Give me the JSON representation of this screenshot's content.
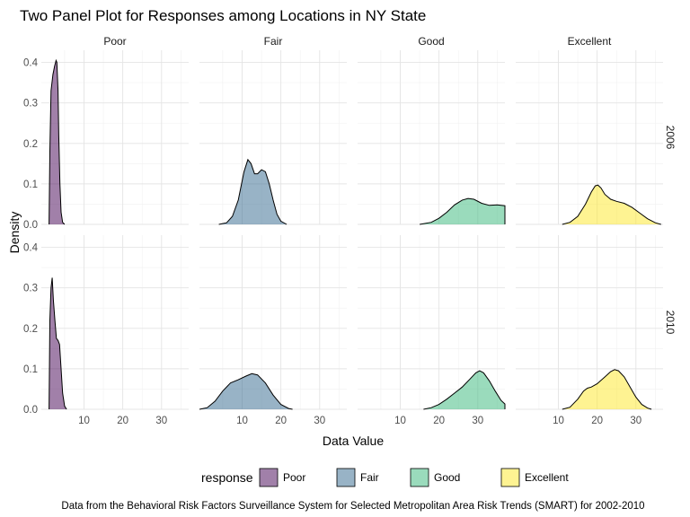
{
  "chart_data": {
    "type": "area",
    "title": "Two Panel Plot for Responses among Locations in NY State",
    "xlabel": "Data Value",
    "ylabel": "Density",
    "caption": "Data from the Behavioral Risk Factors Surveillance System for Selected Metropolitan Area Risk Trends (SMART) for 2002-2010",
    "legend_title": "response",
    "legend_position": "bottom",
    "grid": true,
    "facet_cols": [
      "Poor",
      "Fair",
      "Good",
      "Excellent"
    ],
    "facet_rows": [
      "2006",
      "2010"
    ],
    "xlim": [
      -1,
      37
    ],
    "ylim": [
      0,
      0.43
    ],
    "x_ticks": [
      10,
      20,
      30
    ],
    "y_ticks": [
      0.0,
      0.1,
      0.2,
      0.3,
      0.4
    ],
    "x_tick_labels": [
      "10",
      "20",
      "30"
    ],
    "y_tick_labels": [
      "0.0",
      "0.1",
      "0.2",
      "0.3",
      "0.4"
    ],
    "series": [
      {
        "name": "Poor",
        "color": "#440154",
        "fill_opacity": 0.5
      },
      {
        "name": "Fair",
        "color": "#31688E",
        "fill_opacity": 0.5
      },
      {
        "name": "Good",
        "color": "#35B779",
        "fill_opacity": 0.5
      },
      {
        "name": "Excellent",
        "color": "#FDE725",
        "fill_opacity": 0.5
      }
    ],
    "panels": [
      {
        "row": "2006",
        "col": "Poor",
        "points": [
          [
            1.0,
            0.0
          ],
          [
            1.2,
            0.18
          ],
          [
            1.5,
            0.33
          ],
          [
            2.0,
            0.37
          ],
          [
            2.4,
            0.39
          ],
          [
            2.8,
            0.405
          ],
          [
            3.0,
            0.4
          ],
          [
            3.3,
            0.33
          ],
          [
            3.5,
            0.22
          ],
          [
            3.8,
            0.1
          ],
          [
            4.1,
            0.03
          ],
          [
            4.5,
            0.005
          ],
          [
            5.0,
            0.0
          ]
        ]
      },
      {
        "row": "2006",
        "col": "Fair",
        "points": [
          [
            4.0,
            0.0
          ],
          [
            6.0,
            0.004
          ],
          [
            7.5,
            0.02
          ],
          [
            9.0,
            0.06
          ],
          [
            10.5,
            0.13
          ],
          [
            11.5,
            0.16
          ],
          [
            12.3,
            0.15
          ],
          [
            13.2,
            0.125
          ],
          [
            14.0,
            0.125
          ],
          [
            15.0,
            0.135
          ],
          [
            16.0,
            0.13
          ],
          [
            17.0,
            0.1
          ],
          [
            18.0,
            0.06
          ],
          [
            19.0,
            0.025
          ],
          [
            20.0,
            0.008
          ],
          [
            21.5,
            0.0
          ]
        ]
      },
      {
        "row": "2006",
        "col": "Good",
        "points": [
          [
            15.0,
            0.0
          ],
          [
            18.0,
            0.005
          ],
          [
            20.0,
            0.015
          ],
          [
            22.0,
            0.03
          ],
          [
            24.0,
            0.048
          ],
          [
            26.0,
            0.06
          ],
          [
            27.5,
            0.064
          ],
          [
            29.0,
            0.062
          ],
          [
            31.0,
            0.052
          ],
          [
            33.0,
            0.047
          ],
          [
            35.0,
            0.048
          ],
          [
            37.0,
            0.046
          ],
          [
            37.0,
            0.0
          ]
        ]
      },
      {
        "row": "2006",
        "col": "Excellent",
        "points": [
          [
            11.0,
            0.0
          ],
          [
            13.0,
            0.005
          ],
          [
            15.0,
            0.02
          ],
          [
            17.0,
            0.05
          ],
          [
            18.5,
            0.08
          ],
          [
            19.5,
            0.095
          ],
          [
            20.2,
            0.097
          ],
          [
            21.0,
            0.09
          ],
          [
            22.0,
            0.074
          ],
          [
            23.5,
            0.062
          ],
          [
            25.0,
            0.057
          ],
          [
            27.0,
            0.052
          ],
          [
            29.0,
            0.042
          ],
          [
            31.0,
            0.028
          ],
          [
            33.0,
            0.014
          ],
          [
            35.0,
            0.004
          ],
          [
            36.5,
            0.0
          ]
        ]
      },
      {
        "row": "2010",
        "col": "Poor",
        "points": [
          [
            1.0,
            0.0
          ],
          [
            1.2,
            0.22
          ],
          [
            1.5,
            0.3
          ],
          [
            1.8,
            0.325
          ],
          [
            2.1,
            0.27
          ],
          [
            2.5,
            0.22
          ],
          [
            2.9,
            0.175
          ],
          [
            3.3,
            0.17
          ],
          [
            3.7,
            0.16
          ],
          [
            4.1,
            0.1
          ],
          [
            4.5,
            0.04
          ],
          [
            5.0,
            0.008
          ],
          [
            5.5,
            0.0
          ]
        ]
      },
      {
        "row": "2010",
        "col": "Fair",
        "points": [
          [
            -1.0,
            0.0
          ],
          [
            1.0,
            0.004
          ],
          [
            3.0,
            0.02
          ],
          [
            5.0,
            0.045
          ],
          [
            7.0,
            0.065
          ],
          [
            9.0,
            0.073
          ],
          [
            11.0,
            0.082
          ],
          [
            12.5,
            0.088
          ],
          [
            14.0,
            0.085
          ],
          [
            16.0,
            0.065
          ],
          [
            18.0,
            0.035
          ],
          [
            20.0,
            0.012
          ],
          [
            22.0,
            0.002
          ],
          [
            23.0,
            0.0
          ]
        ]
      },
      {
        "row": "2010",
        "col": "Good",
        "points": [
          [
            16.0,
            0.0
          ],
          [
            18.0,
            0.004
          ],
          [
            20.0,
            0.012
          ],
          [
            22.0,
            0.025
          ],
          [
            24.0,
            0.04
          ],
          [
            26.0,
            0.055
          ],
          [
            28.0,
            0.075
          ],
          [
            29.5,
            0.09
          ],
          [
            30.5,
            0.095
          ],
          [
            31.5,
            0.09
          ],
          [
            33.0,
            0.07
          ],
          [
            34.5,
            0.045
          ],
          [
            36.0,
            0.022
          ],
          [
            37.0,
            0.013
          ],
          [
            37.0,
            0.0
          ]
        ]
      },
      {
        "row": "2010",
        "col": "Excellent",
        "points": [
          [
            11.0,
            0.0
          ],
          [
            13.0,
            0.005
          ],
          [
            15.0,
            0.025
          ],
          [
            16.5,
            0.045
          ],
          [
            17.5,
            0.052
          ],
          [
            18.5,
            0.055
          ],
          [
            20.0,
            0.063
          ],
          [
            22.0,
            0.08
          ],
          [
            23.5,
            0.093
          ],
          [
            24.5,
            0.098
          ],
          [
            25.5,
            0.095
          ],
          [
            27.0,
            0.08
          ],
          [
            28.5,
            0.055
          ],
          [
            30.0,
            0.03
          ],
          [
            31.5,
            0.012
          ],
          [
            33.0,
            0.003
          ],
          [
            34.0,
            0.0
          ]
        ]
      }
    ]
  }
}
